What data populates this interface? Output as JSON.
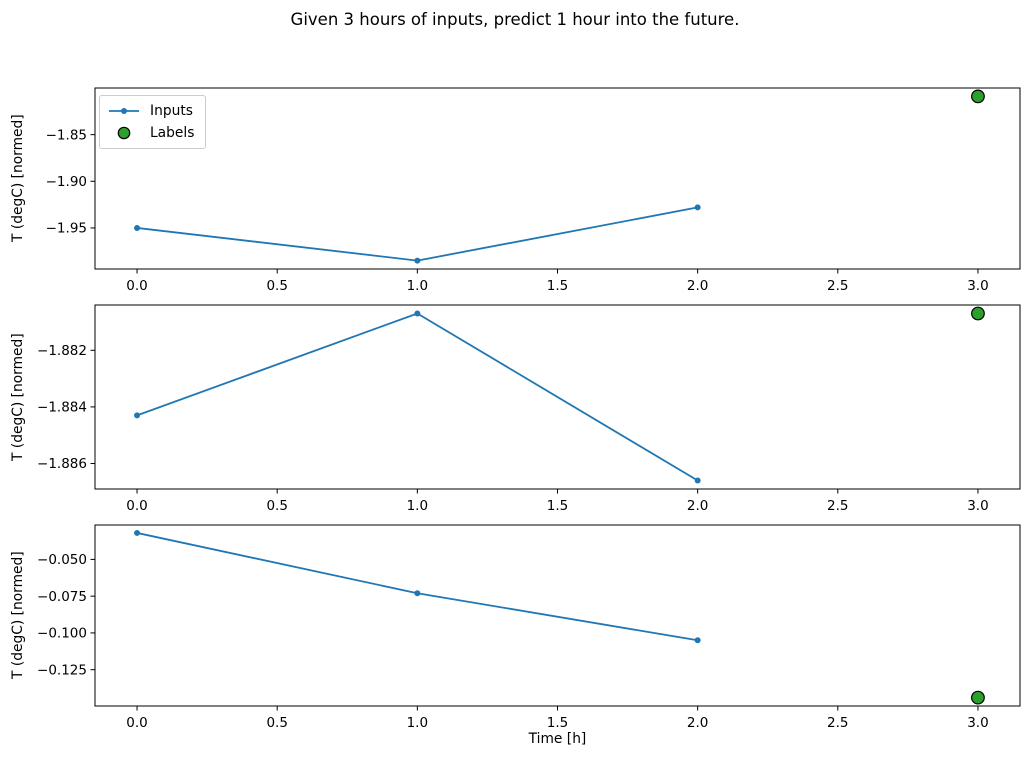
{
  "figure": {
    "title": "Given 3 hours of inputs, predict 1 hour into the future.",
    "background": "#ffffff",
    "text_color": "#000000"
  },
  "legend": {
    "position": "upper-left",
    "items": [
      {
        "label": "Inputs",
        "marker": "line-with-dot",
        "color": "#1f77b4"
      },
      {
        "label": "Labels",
        "marker": "circle",
        "color": "#2ca02c",
        "edge_color": "#000000"
      }
    ]
  },
  "chart_data": [
    {
      "type": "line",
      "title": "",
      "xlabel": "",
      "ylabel": "T (degC) [normed]",
      "grid": false,
      "legend": true,
      "legend_position": "upper left",
      "xlim": [
        -0.15,
        3.15
      ],
      "ylim": [
        -1.994,
        -1.8
      ],
      "xtick_values": [
        0,
        0.5,
        1,
        1.5,
        2,
        2.5,
        3
      ],
      "xtick_labels": [
        "0.0",
        "0.5",
        "1.0",
        "1.5",
        "2.0",
        "2.5",
        "3.0"
      ],
      "ytick_values": [
        -1.85,
        -1.9,
        -1.95
      ],
      "ytick_labels": [
        "−1.85",
        "−1.90",
        "−1.95"
      ],
      "series": [
        {
          "name": "Inputs",
          "type": "line",
          "color": "#1f77b4",
          "marker": "dot",
          "x": [
            0,
            1,
            2
          ],
          "y": [
            -1.95,
            -1.985,
            -1.928
          ]
        },
        {
          "name": "Labels",
          "type": "scatter",
          "color": "#2ca02c",
          "edge_color": "#000000",
          "x": [
            3
          ],
          "y": [
            -1.809
          ]
        }
      ]
    },
    {
      "type": "line",
      "title": "",
      "xlabel": "",
      "ylabel": "T (degC) [normed]",
      "grid": false,
      "legend": false,
      "xlim": [
        -0.15,
        3.15
      ],
      "ylim": [
        -1.8869,
        -1.8804
      ],
      "xtick_values": [
        0,
        0.5,
        1,
        1.5,
        2,
        2.5,
        3
      ],
      "xtick_labels": [
        "0.0",
        "0.5",
        "1.0",
        "1.5",
        "2.0",
        "2.5",
        "3.0"
      ],
      "ytick_values": [
        -1.882,
        -1.884,
        -1.886
      ],
      "ytick_labels": [
        "−1.882",
        "−1.884",
        "−1.886"
      ],
      "series": [
        {
          "name": "Inputs",
          "type": "line",
          "color": "#1f77b4",
          "marker": "dot",
          "x": [
            0,
            1,
            2
          ],
          "y": [
            -1.8843,
            -1.8807,
            -1.8866
          ]
        },
        {
          "name": "Labels",
          "type": "scatter",
          "color": "#2ca02c",
          "edge_color": "#000000",
          "x": [
            3
          ],
          "y": [
            -1.8807
          ]
        }
      ]
    },
    {
      "type": "line",
      "title": "",
      "xlabel": "Time [h]",
      "ylabel": "T (degC) [normed]",
      "grid": false,
      "legend": false,
      "xlim": [
        -0.15,
        3.15
      ],
      "ylim": [
        -0.1497,
        -0.0266
      ],
      "xtick_values": [
        0,
        0.5,
        1,
        1.5,
        2,
        2.5,
        3
      ],
      "xtick_labels": [
        "0.0",
        "0.5",
        "1.0",
        "1.5",
        "2.0",
        "2.5",
        "3.0"
      ],
      "ytick_values": [
        -0.05,
        -0.075,
        -0.1,
        -0.125
      ],
      "ytick_labels": [
        "−0.050",
        "−0.075",
        "−0.100",
        "−0.125"
      ],
      "series": [
        {
          "name": "Inputs",
          "type": "line",
          "color": "#1f77b4",
          "marker": "dot",
          "x": [
            0,
            1,
            2
          ],
          "y": [
            -0.032,
            -0.073,
            -0.105
          ]
        },
        {
          "name": "Labels",
          "type": "scatter",
          "color": "#2ca02c",
          "edge_color": "#000000",
          "x": [
            3
          ],
          "y": [
            -0.144
          ]
        }
      ]
    }
  ]
}
